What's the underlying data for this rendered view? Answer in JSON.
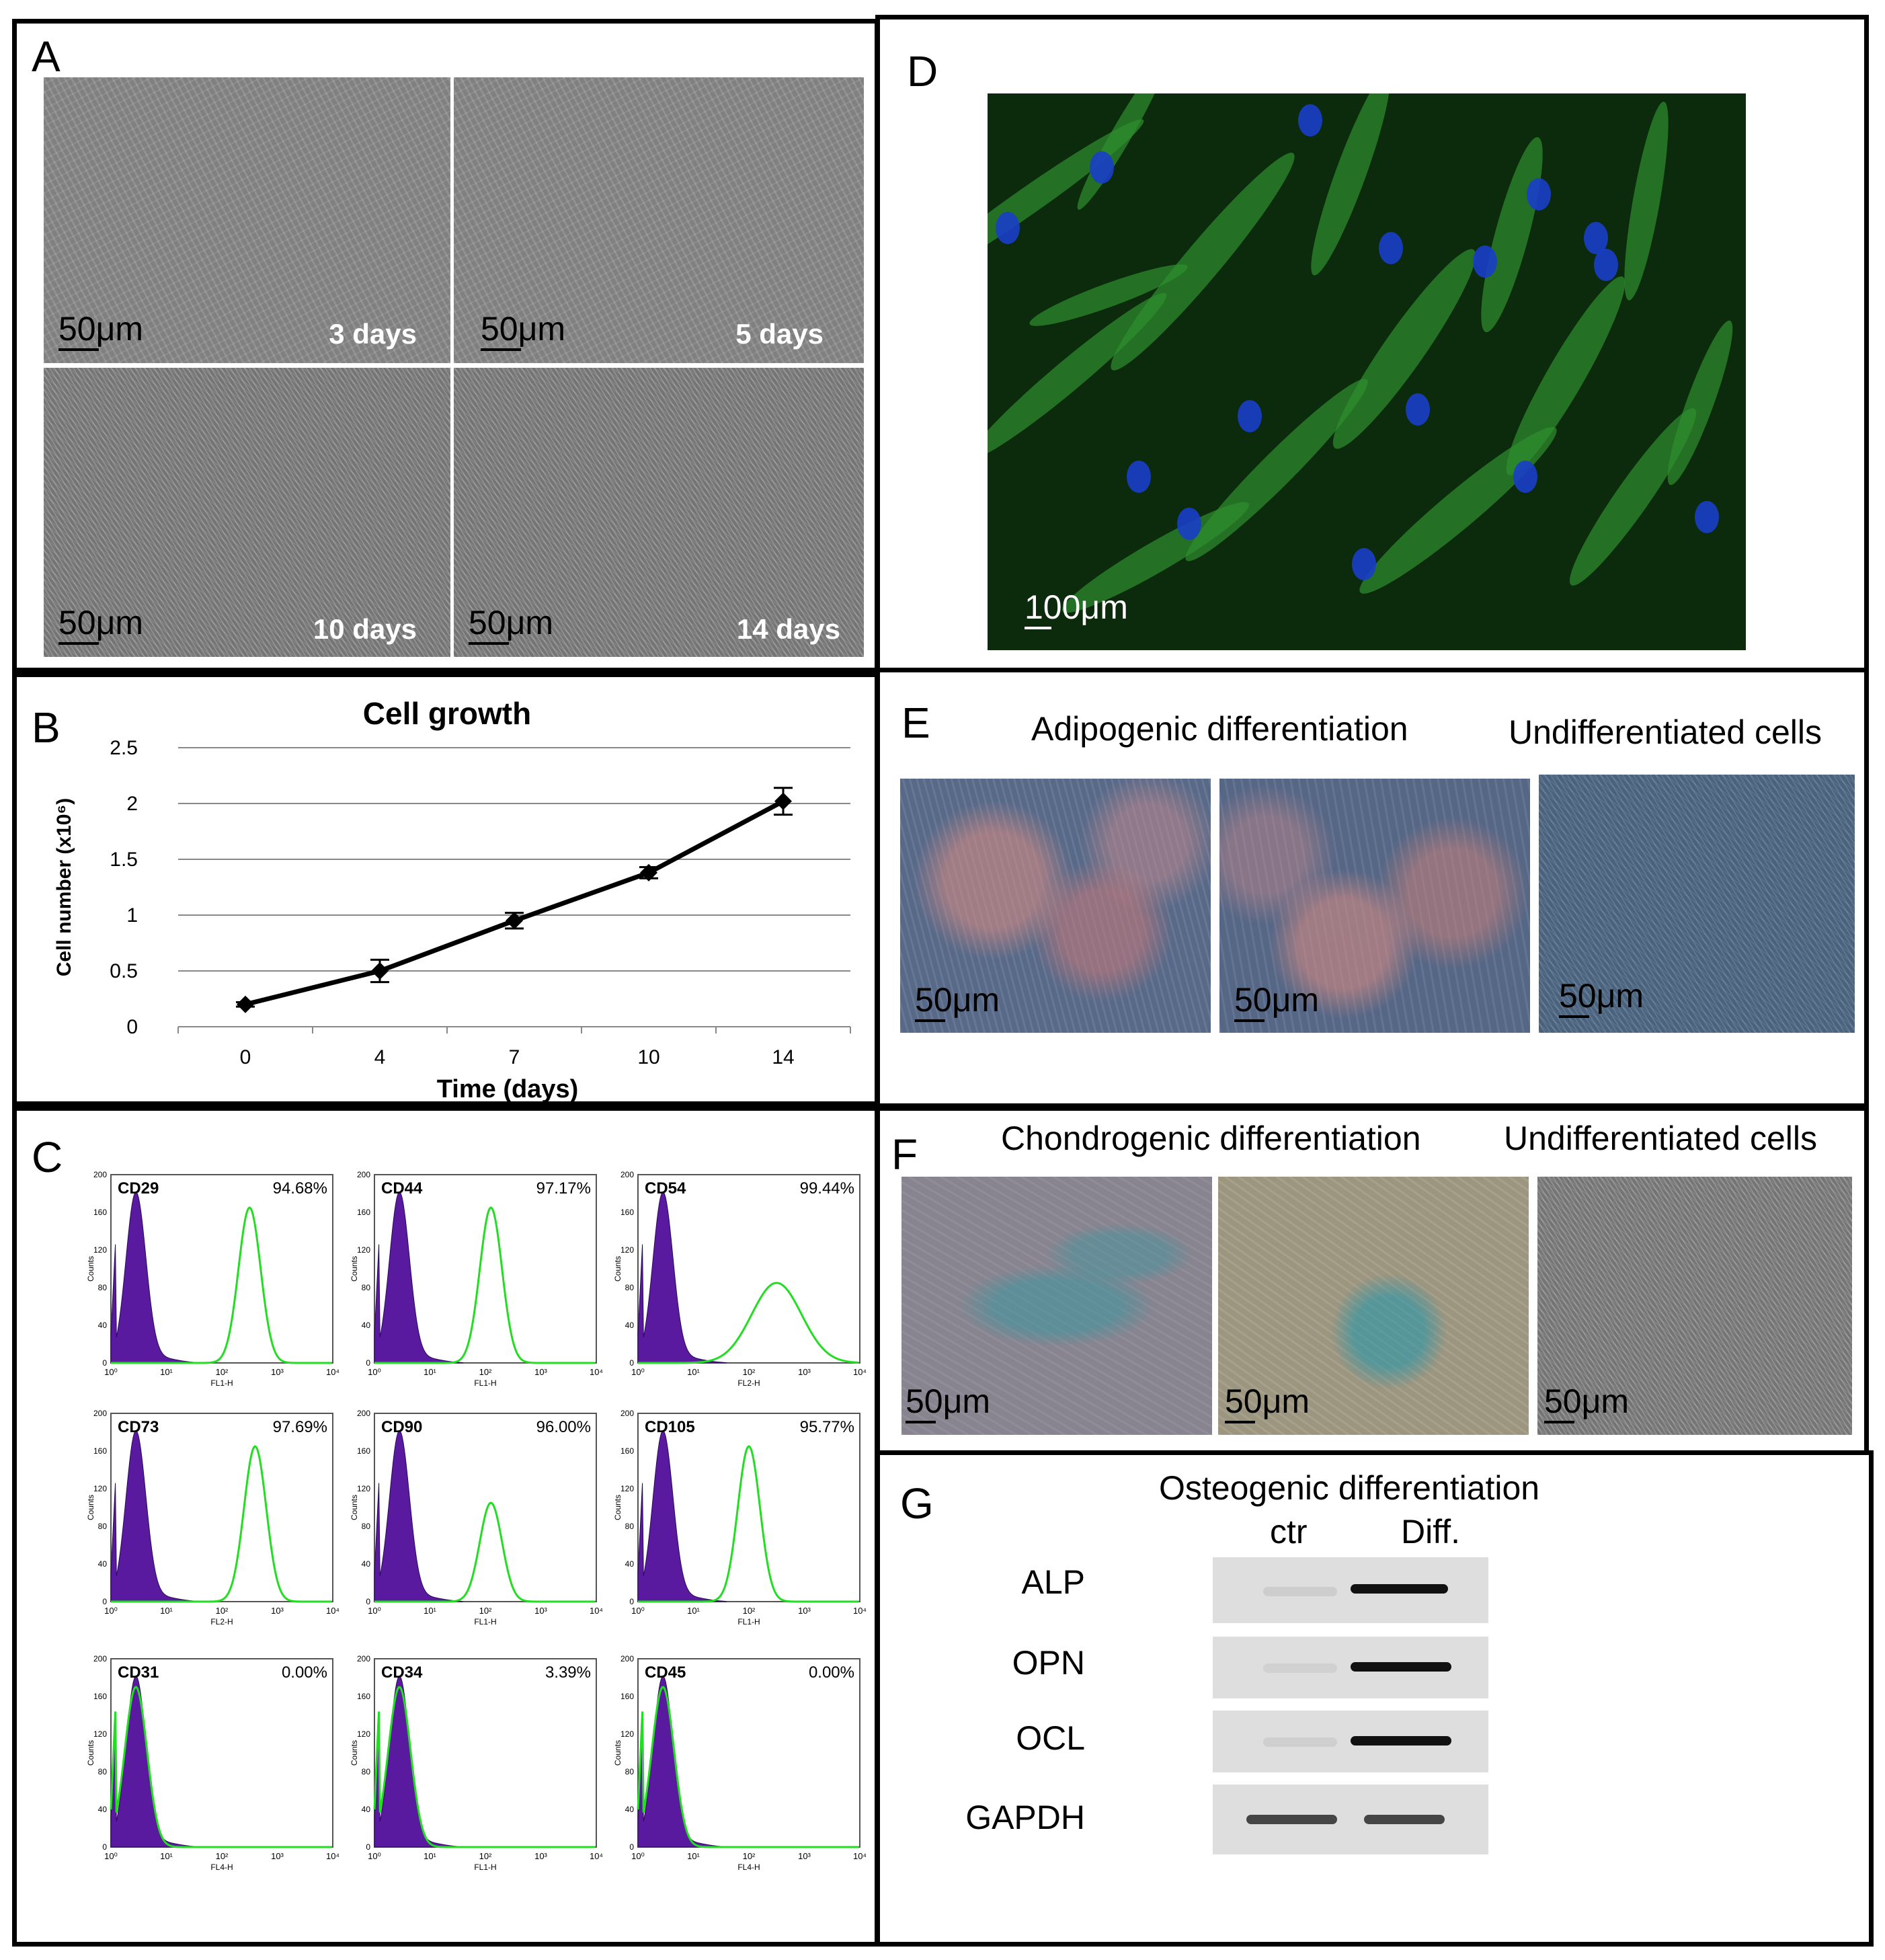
{
  "panels": {
    "A": {
      "label": "A",
      "images": [
        {
          "scale": "50μm",
          "day": "3 days"
        },
        {
          "scale": "50μm",
          "day": "5 days"
        },
        {
          "scale": "50μm",
          "day": "10 days"
        },
        {
          "scale": "50μm",
          "day": "14 days"
        }
      ]
    },
    "B": {
      "label": "B"
    },
    "C": {
      "label": "C",
      "histograms": [
        {
          "marker": "CD29",
          "percent": "94.68%",
          "xlabel": "FL1-H",
          "peak": 2.5
        },
        {
          "marker": "CD44",
          "percent": "97.17%",
          "xlabel": "FL1-H",
          "peak": 2.1
        },
        {
          "marker": "CD54",
          "percent": "99.44%",
          "xlabel": "FL2-H",
          "peak": 2.5
        },
        {
          "marker": "CD73",
          "percent": "97.69%",
          "xlabel": "FL2-H",
          "peak": 2.6
        },
        {
          "marker": "CD90",
          "percent": "96.00%",
          "xlabel": "FL1-H",
          "peak": 2.1
        },
        {
          "marker": "CD105",
          "percent": "95.77%",
          "xlabel": "FL1-H",
          "peak": 2.0
        },
        {
          "marker": "CD31",
          "percent": "0.00%",
          "xlabel": "FL4-H",
          "peak": 0.2
        },
        {
          "marker": "CD34",
          "percent": "3.39%",
          "xlabel": "FL1-H",
          "peak": 0.45
        },
        {
          "marker": "CD45",
          "percent": "0.00%",
          "xlabel": "FL4-H",
          "peak": 0.2
        }
      ],
      "yaxis_label": "Counts",
      "yticks": [
        "0",
        "40",
        "80",
        "120",
        "160",
        "200"
      ],
      "xticks": [
        "10⁰",
        "10¹",
        "10²",
        "10³",
        "10⁴"
      ]
    },
    "D": {
      "label": "D",
      "scale": "100μm"
    },
    "E": {
      "label": "E",
      "heading_left": "Adipogenic differentiation",
      "heading_right": "Undifferentiated cells",
      "scales": [
        "50μm",
        "50μm",
        "50μm"
      ]
    },
    "F": {
      "label": "F",
      "heading_left": "Chondrogenic differentiation",
      "heading_right": "Undifferentiated cells",
      "scales": [
        "50μm",
        "50μm",
        "50μm"
      ]
    },
    "G": {
      "label": "G",
      "heading": "Osteogenic differentiation",
      "columns": [
        "ctr",
        "Diff."
      ],
      "rows": [
        {
          "gene": "ALP",
          "ctr": "faint",
          "diff": "strong"
        },
        {
          "gene": "OPN",
          "ctr": "faint",
          "diff": "strong"
        },
        {
          "gene": "OCL",
          "ctr": "faint",
          "diff": "strong"
        },
        {
          "gene": "GAPDH",
          "ctr": "strong",
          "diff": "strong"
        }
      ]
    }
  },
  "chart_data": {
    "type": "line",
    "title": "Cell growth",
    "xlabel": "Time (days)",
    "ylabel": "Cell number (x10⁶)",
    "categories": [
      "0",
      "4",
      "7",
      "10",
      "14"
    ],
    "values": [
      0.2,
      0.5,
      0.95,
      1.38,
      2.02
    ],
    "errors": [
      0.02,
      0.1,
      0.07,
      0.05,
      0.12
    ],
    "ylim": [
      0,
      2.5
    ],
    "yticks": [
      "0",
      "0.5",
      "1",
      "1.5",
      "2",
      "2.5"
    ],
    "grid": true
  }
}
